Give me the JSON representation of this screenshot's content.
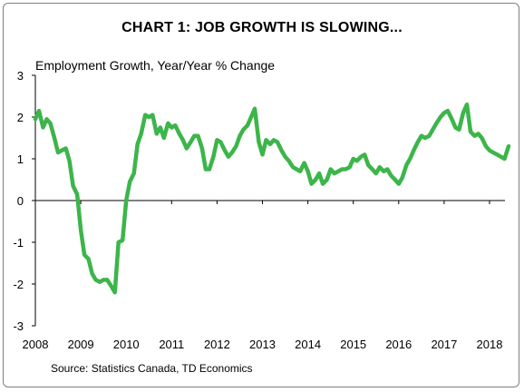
{
  "title": "CHART 1: JOB GROWTH IS SLOWING...",
  "source": "Source: Statistics Canada, TD Economics",
  "chart_data": {
    "type": "line",
    "title": "CHART 1: JOB GROWTH IS SLOWING...",
    "ylabel": "Employment Growth, Year/Year % Change",
    "xlabel": "",
    "xlim": [
      2008.0,
      2018.42
    ],
    "ylim": [
      -3,
      3
    ],
    "grid": false,
    "legend": "none",
    "x_ticks": [
      "2008",
      "2009",
      "2010",
      "2011",
      "2012",
      "2013",
      "2014",
      "2015",
      "2016",
      "2017",
      "2018"
    ],
    "y_ticks": [
      3,
      2,
      1,
      0,
      -1,
      -2,
      -3
    ],
    "series": [
      {
        "color": "#3cb54a",
        "x": [
          2008.0,
          2008.08,
          2008.17,
          2008.25,
          2008.33,
          2008.42,
          2008.5,
          2008.58,
          2008.67,
          2008.75,
          2008.83,
          2008.92,
          2009.0,
          2009.08,
          2009.17,
          2009.25,
          2009.33,
          2009.42,
          2009.5,
          2009.58,
          2009.67,
          2009.75,
          2009.83,
          2009.92,
          2010.0,
          2010.08,
          2010.17,
          2010.25,
          2010.33,
          2010.42,
          2010.5,
          2010.58,
          2010.67,
          2010.75,
          2010.83,
          2010.92,
          2011.0,
          2011.08,
          2011.17,
          2011.25,
          2011.33,
          2011.42,
          2011.5,
          2011.58,
          2011.67,
          2011.75,
          2011.83,
          2011.92,
          2012.0,
          2012.08,
          2012.17,
          2012.25,
          2012.33,
          2012.42,
          2012.5,
          2012.58,
          2012.67,
          2012.75,
          2012.83,
          2012.92,
          2013.0,
          2013.08,
          2013.17,
          2013.25,
          2013.33,
          2013.42,
          2013.5,
          2013.58,
          2013.67,
          2013.75,
          2013.83,
          2013.92,
          2014.0,
          2014.08,
          2014.17,
          2014.25,
          2014.33,
          2014.42,
          2014.5,
          2014.58,
          2014.67,
          2014.75,
          2014.83,
          2014.92,
          2015.0,
          2015.08,
          2015.17,
          2015.25,
          2015.33,
          2015.42,
          2015.5,
          2015.58,
          2015.67,
          2015.75,
          2015.83,
          2015.92,
          2016.0,
          2016.08,
          2016.17,
          2016.25,
          2016.33,
          2016.42,
          2016.5,
          2016.58,
          2016.67,
          2016.75,
          2016.83,
          2016.92,
          2017.0,
          2017.08,
          2017.17,
          2017.25,
          2017.33,
          2017.42,
          2017.5,
          2017.58,
          2017.67,
          2017.75,
          2017.83,
          2017.92,
          2018.0,
          2018.08,
          2018.17,
          2018.25,
          2018.33,
          2018.42
        ],
        "values": [
          1.95,
          2.15,
          1.75,
          1.95,
          1.85,
          1.5,
          1.15,
          1.2,
          1.25,
          0.95,
          0.35,
          0.15,
          -0.7,
          -1.3,
          -1.4,
          -1.75,
          -1.9,
          -1.95,
          -1.9,
          -1.9,
          -2.05,
          -2.2,
          -1.0,
          -0.95,
          0.0,
          0.45,
          0.65,
          1.35,
          1.6,
          2.05,
          2.0,
          2.05,
          1.6,
          1.75,
          1.5,
          1.85,
          1.75,
          1.8,
          1.6,
          1.45,
          1.25,
          1.4,
          1.55,
          1.55,
          1.25,
          0.75,
          0.75,
          1.05,
          1.45,
          1.4,
          1.2,
          1.05,
          1.15,
          1.3,
          1.55,
          1.7,
          1.8,
          2.0,
          2.2,
          1.4,
          1.1,
          1.45,
          1.35,
          1.45,
          1.4,
          1.2,
          1.05,
          0.95,
          0.8,
          0.75,
          0.7,
          0.9,
          0.7,
          0.4,
          0.5,
          0.65,
          0.4,
          0.5,
          0.75,
          0.65,
          0.7,
          0.75,
          0.75,
          0.8,
          1.0,
          0.95,
          1.05,
          1.1,
          0.85,
          0.75,
          0.65,
          0.8,
          0.7,
          0.75,
          0.6,
          0.5,
          0.4,
          0.55,
          0.85,
          1.0,
          1.2,
          1.4,
          1.55,
          1.5,
          1.55,
          1.7,
          1.85,
          2.0,
          2.1,
          2.15,
          1.95,
          1.75,
          1.7,
          2.1,
          2.3,
          1.65,
          1.55,
          1.6,
          1.5,
          1.3,
          1.2,
          1.15,
          1.1,
          1.05,
          1.0,
          1.3
        ]
      }
    ]
  }
}
